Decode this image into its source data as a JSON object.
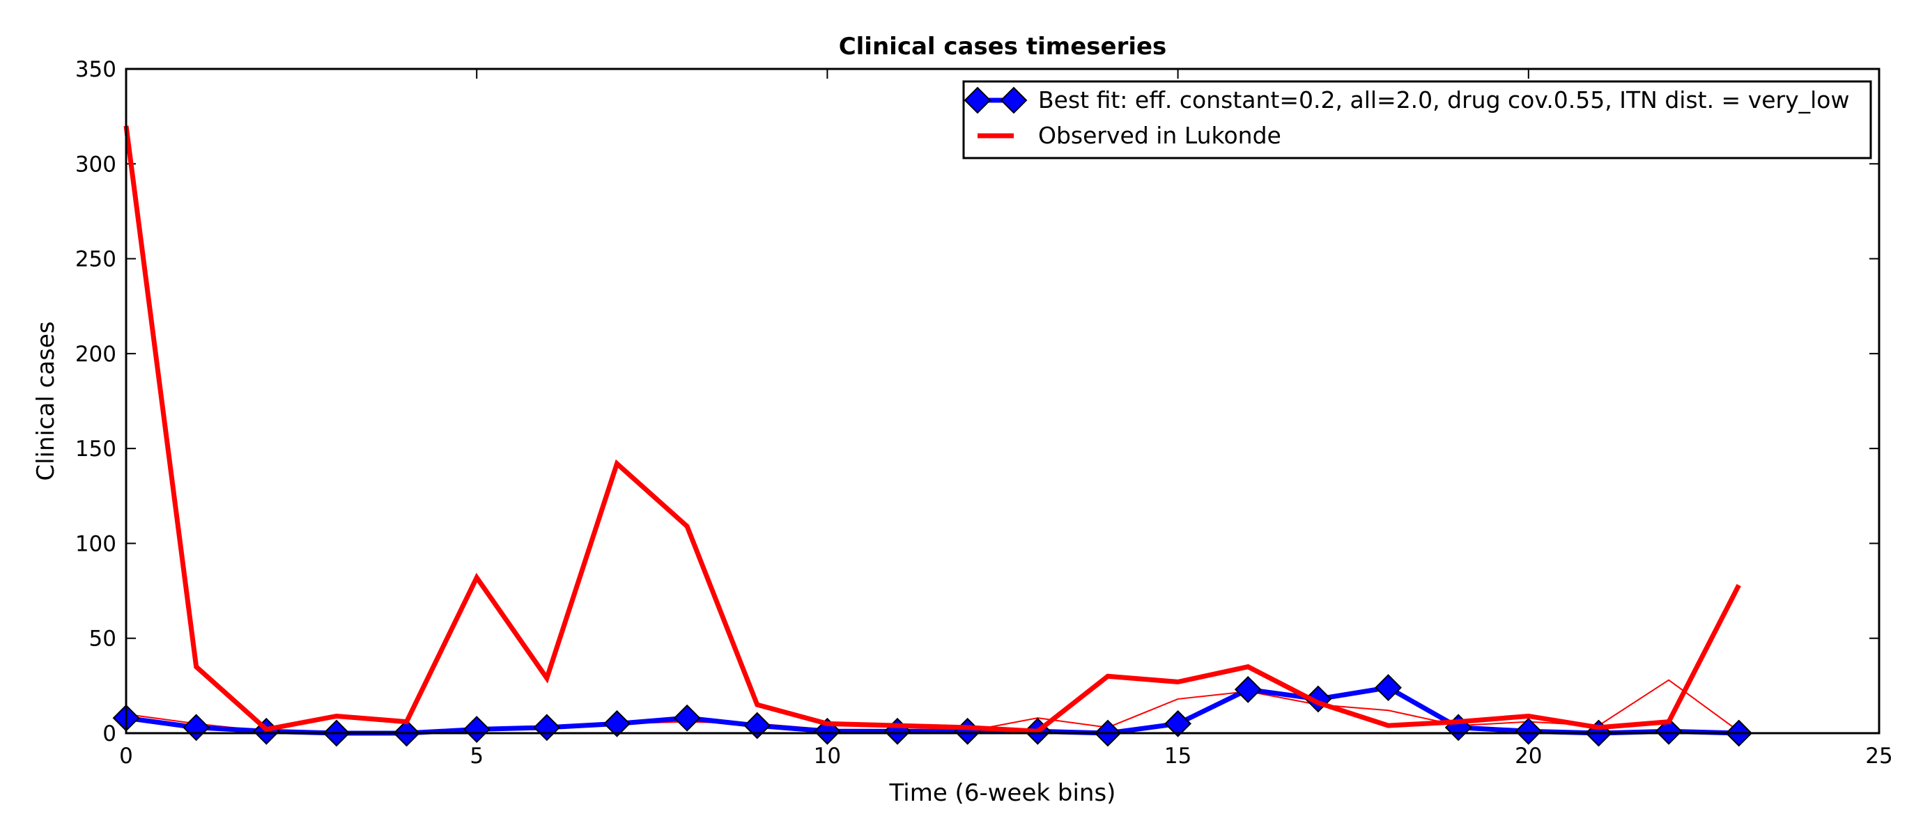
{
  "chart_data": {
    "type": "line",
    "title": "Clinical cases timeseries",
    "xlabel": "Time (6-week bins)",
    "ylabel": "Clinical cases",
    "xlim": [
      0,
      25
    ],
    "ylim": [
      0,
      350
    ],
    "xticks": [
      0,
      5,
      10,
      15,
      20,
      25
    ],
    "yticks": [
      0,
      50,
      100,
      150,
      200,
      250,
      300,
      350
    ],
    "grid": false,
    "legend_position": "top-right",
    "series": [
      {
        "name": "Best fit: eff. constant=0.2, all=2.0, drug cov.0.55, ITN dist. = very_low",
        "color": "#0000ff",
        "marker": "diamond",
        "x": [
          0,
          1,
          2,
          3,
          4,
          5,
          6,
          7,
          8,
          9,
          10,
          11,
          12,
          13,
          14,
          15,
          16,
          17,
          18,
          19,
          20,
          21,
          22,
          23
        ],
        "y": [
          8,
          3,
          1,
          0,
          0,
          2,
          3,
          5,
          8,
          4,
          1,
          1,
          1,
          1,
          0,
          5,
          23,
          18,
          24,
          3,
          1,
          0,
          1,
          0
        ]
      },
      {
        "name": "Observed in Lukonde",
        "color": "#ff0000",
        "x": [
          0,
          1,
          2,
          3,
          4,
          5,
          6,
          7,
          8,
          9,
          10,
          11,
          12,
          13,
          14,
          15,
          16,
          17,
          18,
          19,
          20,
          21,
          22,
          23
        ],
        "y": [
          320,
          35,
          2,
          9,
          6,
          82,
          29,
          142,
          109,
          15,
          5,
          4,
          3,
          1,
          30,
          27,
          35,
          16,
          4,
          6,
          9,
          3,
          6,
          78
        ]
      }
    ],
    "extra_series": [
      {
        "color": "#ff0000",
        "x": [
          0,
          1,
          2,
          3,
          4,
          5,
          6,
          7,
          8,
          9,
          10,
          11,
          12,
          13,
          14,
          15,
          16,
          17,
          18,
          19,
          20,
          21,
          22,
          23
        ],
        "y": [
          10,
          5,
          1,
          1,
          0,
          3,
          2,
          5,
          6,
          5,
          2,
          1,
          1,
          8,
          3,
          18,
          22,
          15,
          12,
          4,
          6,
          4,
          28,
          1
        ]
      }
    ]
  }
}
